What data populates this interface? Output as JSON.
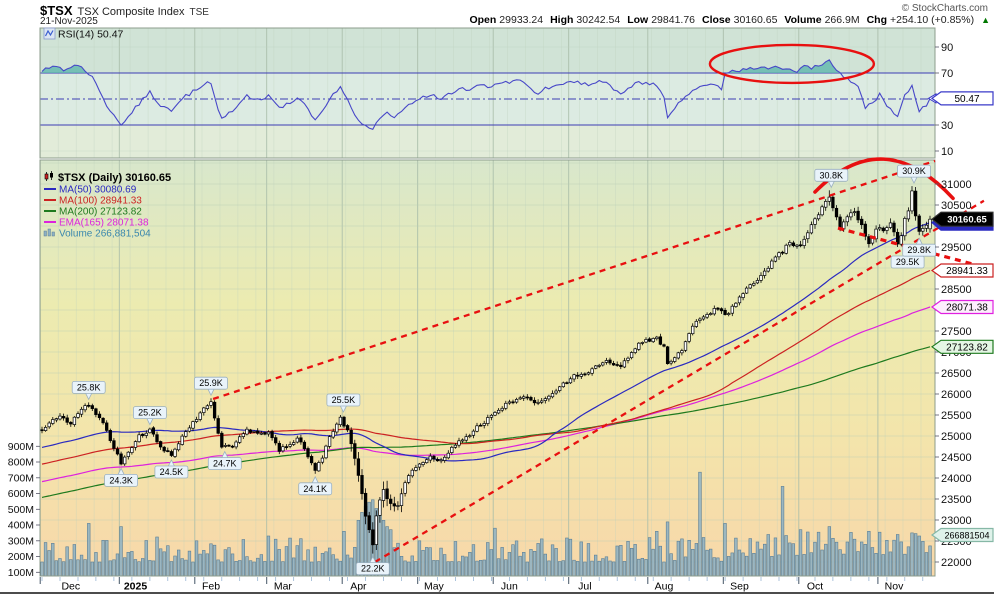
{
  "header": {
    "symbol": "$TSX",
    "name": "TSX Composite Index",
    "exchange": "TSE",
    "date": "21-Nov-2025",
    "copyright": "© StockCharts.com",
    "quote": [
      {
        "label": "Open",
        "value": "29933.24"
      },
      {
        "label": "High",
        "value": "30242.54"
      },
      {
        "label": "Low",
        "value": "29841.76"
      },
      {
        "label": "Close",
        "value": "30160.65"
      },
      {
        "label": "Volume",
        "value": "266.9M"
      },
      {
        "label": "Chg",
        "value": "+254.10 (+0.85%)"
      }
    ],
    "chg_arrow": "▲"
  },
  "rsi": {
    "legend": "RSI(14) 50.47",
    "value": 50.47,
    "value_label": "50.47",
    "ticks": [
      90,
      70,
      30,
      10
    ],
    "levels": {
      "overbought": 70,
      "mid": 50,
      "oversold": 30
    }
  },
  "legend": {
    "series": "$TSX (Daily) 30160.65",
    "ma50": "MA(50) 30080.69",
    "ma100": "MA(100) 28941.33",
    "ma200": "MA(200) 27123.82",
    "ema165": "EMA(165) 28071.38",
    "volume": "Volume 266,881,504"
  },
  "colors": {
    "ma50": "#2a2ac0",
    "ma100": "#cc2222",
    "ma200": "#1e7a1e",
    "ema165": "#dd22dd",
    "volume_text": "#3a87ad",
    "rsi_line": "#4747c8",
    "rsi_fill": "#5fb7ad",
    "annotation": "#e81010",
    "candle": "#000000",
    "vol_fill": "#8cb0c4",
    "vol_stroke": "#5b7e95"
  },
  "axes": {
    "price_ticks": [
      31000,
      30500,
      30000,
      29500,
      29000,
      28500,
      28000,
      27500,
      27000,
      26500,
      26000,
      25500,
      25000,
      24500,
      24000,
      23500,
      23000,
      22500,
      22000
    ],
    "volume_ticks": [
      {
        "label": "900M",
        "v": 900
      },
      {
        "label": "800M",
        "v": 800
      },
      {
        "label": "700M",
        "v": 700
      },
      {
        "label": "600M",
        "v": 600
      },
      {
        "label": "500M",
        "v": 500
      },
      {
        "label": "400M",
        "v": 400
      },
      {
        "label": "300M",
        "v": 300
      },
      {
        "label": "200M",
        "v": 200
      },
      {
        "label": "100M",
        "v": 100
      }
    ],
    "months": [
      {
        "label": "Dec",
        "start": 0
      },
      {
        "label": "2025",
        "start": 22,
        "bold": true
      },
      {
        "label": "Feb",
        "start": 43
      },
      {
        "label": "Mar",
        "start": 63
      },
      {
        "label": "Apr",
        "start": 84
      },
      {
        "label": "May",
        "start": 105
      },
      {
        "label": "Jun",
        "start": 126
      },
      {
        "label": "Jul",
        "start": 147
      },
      {
        "label": "Aug",
        "start": 169
      },
      {
        "label": "Sep",
        "start": 190
      },
      {
        "label": "Oct",
        "start": 211
      },
      {
        "label": "Nov",
        "start": 233
      }
    ]
  },
  "value_tags": [
    {
      "text": "50.47",
      "panel": "rsi",
      "rsi": 50.47,
      "bg": "#ffffff",
      "border": "#3a3ac8",
      "color": "#000000",
      "marker": true
    },
    {
      "text": "30080.69",
      "price": 30080.69,
      "h": 15,
      "bg": "#2a2ac0",
      "border": "#2a2ac0",
      "color": "#ffffff"
    },
    {
      "text": "30160.65",
      "price": 30160.65,
      "h": 14,
      "bg": "#000000",
      "border": "#333333",
      "color": "#ffffff",
      "bold": true
    },
    {
      "text": "28941.33",
      "price": 28941.33,
      "bg": "#ffffff",
      "border": "#cc2222",
      "color": "#000000"
    },
    {
      "text": "28071.38",
      "price": 28071.38,
      "bg": "#fdeefd",
      "border": "#e020e0",
      "color": "#000000"
    },
    {
      "text": "27123.82",
      "price": 27123.82,
      "bg": "#e4f6e4",
      "border": "#1e7a1e",
      "color": "#000000"
    },
    {
      "text": "266881504",
      "y": 535,
      "bg": "#dff2ea",
      "border": "#86b8a6",
      "color": "#000000",
      "small": true
    }
  ],
  "annotations": {
    "swings": [
      {
        "text": "25.8K",
        "d": 13,
        "p": 25800,
        "side": "high",
        "dx": 0
      },
      {
        "text": "25.2K",
        "d": 30,
        "p": 25200,
        "side": "high",
        "dx": 0
      },
      {
        "text": "24.3K",
        "d": 22,
        "p": 24300,
        "side": "low",
        "dx": 0
      },
      {
        "text": "24.5K",
        "d": 36,
        "p": 24500,
        "side": "low",
        "dx": 0
      },
      {
        "text": "25.9K",
        "d": 47,
        "p": 25900,
        "side": "high",
        "dx": 0
      },
      {
        "text": "24.7K",
        "d": 50,
        "p": 24700,
        "side": "low",
        "dx": 3
      },
      {
        "text": "24.1K",
        "d": 76,
        "p": 24100,
        "side": "low",
        "dx": 0
      },
      {
        "text": "25.5K",
        "d": 83,
        "p": 25500,
        "side": "high",
        "dx": 3
      },
      {
        "text": "22.2K",
        "d": 92,
        "p": 22200,
        "side": "low",
        "dx": 0
      },
      {
        "text": "30.8K",
        "d": 219,
        "p": 30850,
        "side": "high",
        "dx": 2
      },
      {
        "text": "30.9K",
        "d": 242,
        "p": 30950,
        "side": "high",
        "dx": 2
      },
      {
        "text": "29.5K",
        "d": 238,
        "p": 29500,
        "side": "low",
        "dx": 10
      },
      {
        "text": "29.8K",
        "d": 244,
        "p": 29780,
        "side": "low",
        "dx": 0
      }
    ],
    "trendlines": [
      {
        "d1": 47.6,
        "p1": 25880,
        "d2": 248.4,
        "p2": 31550,
        "width": 2.3
      },
      {
        "d1": 92.6,
        "p1": 22000,
        "d2": 262.0,
        "p2": 30600,
        "width": 2.3
      },
      {
        "d1": 221.4,
        "p1": 29950,
        "d2": 263.0,
        "p2": 29000,
        "width": 3.2
      }
    ],
    "arc": {
      "d1": 215.0,
      "p1": 30810,
      "dc": 234.0,
      "pc": 32450,
      "d2": 253.4,
      "p2": 30660,
      "width": 3.6
    },
    "ellipse": {
      "d": 208.6,
      "rsi": 77,
      "rx_d": 22.8,
      "ry_rsi": 14.6
    }
  },
  "chart_data": {
    "type": "candlestick",
    "symbol": "$TSX",
    "timeframe": "Daily",
    "title": "$TSX TSX Composite Index (TSE) Daily with RSI(14), MA(50/100/200), EMA(165), Volume",
    "ohlc": {
      "open": 29933.24,
      "high": 30242.54,
      "low": 29841.76,
      "close": 30160.65,
      "volume": "266.9M",
      "change": 254.1,
      "change_pct": 0.85
    },
    "indicators": {
      "rsi14": 50.47,
      "ma50": 30080.69,
      "ma100": 28941.33,
      "ma200": 27123.82,
      "ema165": 28071.38,
      "volume_shares": 266881504
    },
    "ylim": [
      21667,
      31571
    ],
    "rsi_ylim": [
      4.6,
      104.6
    ],
    "days": 248,
    "lead_in": {
      "days": 210,
      "from": 21800,
      "to": 25100
    },
    "price_anchors": [
      [
        0,
        25150
      ],
      [
        3,
        25350
      ],
      [
        5,
        25450
      ],
      [
        8,
        25300
      ],
      [
        11,
        25650
      ],
      [
        13,
        25720
      ],
      [
        15,
        25550
      ],
      [
        17,
        25300
      ],
      [
        19,
        24900
      ],
      [
        22,
        24350
      ],
      [
        24,
        24600
      ],
      [
        27,
        25000
      ],
      [
        30,
        25150
      ],
      [
        33,
        24700
      ],
      [
        36,
        24550
      ],
      [
        39,
        25000
      ],
      [
        43,
        25400
      ],
      [
        45,
        25650
      ],
      [
        47,
        25830
      ],
      [
        49,
        25100
      ],
      [
        50,
        24780
      ],
      [
        53,
        24750
      ],
      [
        55,
        25000
      ],
      [
        57,
        25150
      ],
      [
        60,
        25050
      ],
      [
        63,
        25100
      ],
      [
        66,
        24650
      ],
      [
        69,
        24800
      ],
      [
        71,
        24950
      ],
      [
        73,
        24700
      ],
      [
        76,
        24180
      ],
      [
        78,
        24500
      ],
      [
        80,
        25000
      ],
      [
        83,
        25420
      ],
      [
        85,
        25100
      ],
      [
        87,
        24500
      ],
      [
        89,
        23600
      ],
      [
        90,
        23100
      ],
      [
        91,
        22800
      ],
      [
        92,
        22450
      ],
      [
        93,
        23100
      ],
      [
        94,
        23500
      ],
      [
        95,
        23700
      ],
      [
        97,
        23400
      ],
      [
        99,
        23350
      ],
      [
        101,
        23900
      ],
      [
        103,
        24150
      ],
      [
        105,
        24300
      ],
      [
        108,
        24520
      ],
      [
        111,
        24400
      ],
      [
        113,
        24600
      ],
      [
        116,
        24900
      ],
      [
        119,
        25050
      ],
      [
        121,
        25200
      ],
      [
        124,
        25400
      ],
      [
        127,
        25620
      ],
      [
        130,
        25800
      ],
      [
        133,
        25950
      ],
      [
        136,
        25850
      ],
      [
        138,
        25780
      ],
      [
        141,
        25950
      ],
      [
        143,
        26100
      ],
      [
        146,
        26300
      ],
      [
        148,
        26450
      ],
      [
        151,
        26500
      ],
      [
        153,
        26560
      ],
      [
        155,
        26700
      ],
      [
        157,
        26800
      ],
      [
        159,
        26720
      ],
      [
        161,
        26670
      ],
      [
        164,
        26980
      ],
      [
        166,
        27200
      ],
      [
        169,
        27300
      ],
      [
        171,
        27340
      ],
      [
        173,
        27100
      ],
      [
        174,
        26680
      ],
      [
        176,
        26900
      ],
      [
        178,
        27050
      ],
      [
        181,
        27600
      ],
      [
        183,
        27800
      ],
      [
        185,
        27900
      ],
      [
        187,
        28020
      ],
      [
        189,
        27950
      ],
      [
        191,
        27900
      ],
      [
        193,
        28200
      ],
      [
        196,
        28500
      ],
      [
        198,
        28650
      ],
      [
        200,
        28800
      ],
      [
        202,
        29000
      ],
      [
        204,
        29250
      ],
      [
        206,
        29400
      ],
      [
        208,
        29600
      ],
      [
        210,
        29550
      ],
      [
        211,
        29500
      ],
      [
        213,
        29800
      ],
      [
        214,
        30000
      ],
      [
        216,
        30300
      ],
      [
        217,
        30420
      ],
      [
        219,
        30720
      ],
      [
        221,
        30200
      ],
      [
        222,
        29980
      ],
      [
        224,
        30260
      ],
      [
        226,
        30350
      ],
      [
        228,
        30000
      ],
      [
        230,
        29600
      ],
      [
        232,
        29900
      ],
      [
        233,
        30000
      ],
      [
        234,
        29880
      ],
      [
        236,
        30100
      ],
      [
        238,
        29560
      ],
      [
        239,
        29800
      ],
      [
        240,
        30150
      ],
      [
        241,
        30400
      ],
      [
        242,
        30820
      ],
      [
        243,
        30250
      ],
      [
        244,
        29880
      ],
      [
        245,
        29900
      ],
      [
        246,
        29980
      ],
      [
        247,
        30160.65
      ]
    ],
    "rsi_anchors": [
      [
        0,
        72
      ],
      [
        3,
        75
      ],
      [
        6,
        73
      ],
      [
        9,
        76
      ],
      [
        12,
        72
      ],
      [
        14,
        66
      ],
      [
        18,
        45
      ],
      [
        22,
        30
      ],
      [
        25,
        40
      ],
      [
        28,
        50
      ],
      [
        30,
        55
      ],
      [
        33,
        44
      ],
      [
        36,
        41
      ],
      [
        39,
        50
      ],
      [
        43,
        58
      ],
      [
        47,
        63
      ],
      [
        49,
        42
      ],
      [
        50,
        36
      ],
      [
        53,
        40
      ],
      [
        55,
        47
      ],
      [
        57,
        52
      ],
      [
        60,
        50
      ],
      [
        63,
        52
      ],
      [
        66,
        43
      ],
      [
        69,
        48
      ],
      [
        71,
        51
      ],
      [
        73,
        45
      ],
      [
        76,
        35
      ],
      [
        79,
        46
      ],
      [
        81,
        54
      ],
      [
        83,
        60
      ],
      [
        85,
        50
      ],
      [
        87,
        38
      ],
      [
        90,
        29
      ],
      [
        92,
        26
      ],
      [
        94,
        35
      ],
      [
        96,
        40
      ],
      [
        98,
        35
      ],
      [
        101,
        44
      ],
      [
        103,
        47
      ],
      [
        105,
        50
      ],
      [
        108,
        53
      ],
      [
        111,
        50
      ],
      [
        113,
        53
      ],
      [
        116,
        57
      ],
      [
        119,
        58
      ],
      [
        121,
        60
      ],
      [
        124,
        60
      ],
      [
        127,
        62
      ],
      [
        130,
        63
      ],
      [
        133,
        64
      ],
      [
        136,
        58
      ],
      [
        138,
        55
      ],
      [
        141,
        59
      ],
      [
        143,
        61
      ],
      [
        146,
        62
      ],
      [
        148,
        63
      ],
      [
        151,
        61
      ],
      [
        153,
        62
      ],
      [
        155,
        64
      ],
      [
        157,
        64
      ],
      [
        159,
        58
      ],
      [
        161,
        55
      ],
      [
        164,
        60
      ],
      [
        166,
        63
      ],
      [
        169,
        62
      ],
      [
        171,
        60
      ],
      [
        173,
        50
      ],
      [
        174,
        37
      ],
      [
        176,
        44
      ],
      [
        178,
        50
      ],
      [
        181,
        57
      ],
      [
        183,
        60
      ],
      [
        185,
        62
      ],
      [
        187,
        61
      ],
      [
        189,
        58
      ],
      [
        190,
        70
      ],
      [
        192,
        73
      ],
      [
        194,
        71
      ],
      [
        196,
        74
      ],
      [
        198,
        72
      ],
      [
        200,
        75
      ],
      [
        202,
        72
      ],
      [
        204,
        76
      ],
      [
        206,
        72.5
      ],
      [
        208,
        74
      ],
      [
        210,
        71
      ],
      [
        212,
        77
      ],
      [
        214,
        74
      ],
      [
        216,
        76
      ],
      [
        219,
        79
      ],
      [
        221,
        73
      ],
      [
        223,
        67
      ],
      [
        225,
        64
      ],
      [
        227,
        60
      ],
      [
        229,
        43
      ],
      [
        231,
        48
      ],
      [
        233,
        53
      ],
      [
        235,
        45
      ],
      [
        238,
        37
      ],
      [
        240,
        53
      ],
      [
        242,
        60
      ],
      [
        244,
        41
      ],
      [
        246,
        46
      ],
      [
        247,
        50.47
      ]
    ],
    "volume_base": 165,
    "volume_spikes": {
      "13": 410,
      "22": 390,
      "43": 300,
      "63": 330,
      "84": 360,
      "88": 430,
      "89": 480,
      "90": 520,
      "91": 545,
      "92": 560,
      "93": 505,
      "94": 460,
      "95": 430,
      "96": 390,
      "97": 370,
      "105": 300,
      "126": 380,
      "147": 310,
      "169": 320,
      "171": 360,
      "174": 420,
      "183": 735,
      "190": 410,
      "202": 340,
      "206": 645,
      "211": 370,
      "219": 390,
      "226": 310,
      "230": 360,
      "238": 340,
      "242": 350,
      "244": 330,
      "247": 267
    }
  }
}
